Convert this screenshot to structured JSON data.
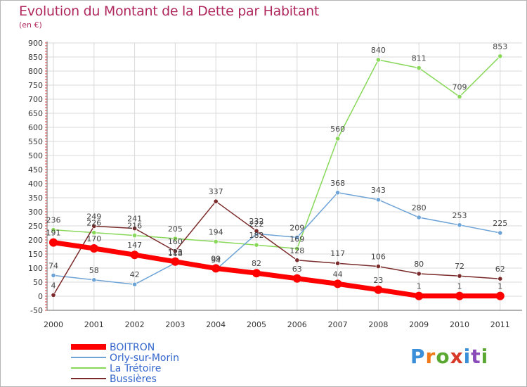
{
  "title": "Evolution du Montant de la Dette par Habitant",
  "subtitle": "(en €)",
  "brand": {
    "letters": [
      "P",
      "r",
      "o",
      "x",
      "i",
      "t",
      "i"
    ],
    "colors": [
      "#3a8fd8",
      "#f07a1a",
      "#5aa832",
      "#d83a2a",
      "#3a8fd8",
      "#8a4bb8",
      "#5aa832"
    ]
  },
  "chart_data": {
    "type": "line",
    "x": [
      "2000",
      "2001",
      "2002",
      "2003",
      "2004",
      "2005",
      "2006",
      "2007",
      "2008",
      "2009",
      "2010",
      "2011"
    ],
    "ylim": [
      -50,
      900
    ],
    "yticks": [
      -50,
      0,
      50,
      100,
      150,
      200,
      250,
      300,
      350,
      400,
      450,
      500,
      550,
      600,
      650,
      700,
      750,
      800,
      850,
      900
    ],
    "grid": true,
    "legend_position": "bottom-left",
    "series": [
      {
        "name": "BOITRON",
        "color": "#ff0000",
        "width": 7,
        "values": [
          191,
          170,
          147,
          123,
          99,
          82,
          63,
          44,
          23,
          1,
          1,
          1
        ],
        "labels": [
          "191",
          "170",
          "147",
          "123",
          "99",
          "82",
          "63",
          "44",
          "23",
          "1",
          "1",
          "1"
        ]
      },
      {
        "name": "Orly-sur-Morin",
        "color": "#6ea3d6",
        "width": 1.5,
        "values": [
          74,
          58,
          42,
          118,
          94,
          222,
          209,
          368,
          343,
          280,
          253,
          225
        ],
        "labels": [
          "74",
          "58",
          "42",
          "118",
          "94",
          "222",
          "209",
          "368",
          "343",
          "280",
          "253",
          "225"
        ]
      },
      {
        "name": "La Trétoire",
        "color": "#88d85a",
        "width": 1.5,
        "values": [
          236,
          226,
          216,
          205,
          194,
          182,
          169,
          560,
          840,
          811,
          709,
          853
        ],
        "labels": [
          "236",
          "226",
          "216",
          "205",
          "194",
          "182",
          "169",
          "560",
          "840",
          "811",
          "709",
          "853"
        ]
      },
      {
        "name": "Bussières",
        "color": "#7a2a2a",
        "width": 1.5,
        "values": [
          4,
          249,
          241,
          160,
          337,
          232,
          128,
          117,
          106,
          80,
          72,
          62
        ],
        "labels": [
          "4",
          "249",
          "241",
          "160",
          "337",
          "232",
          "128",
          "117",
          "106",
          "80",
          "72",
          "62"
        ]
      }
    ]
  }
}
